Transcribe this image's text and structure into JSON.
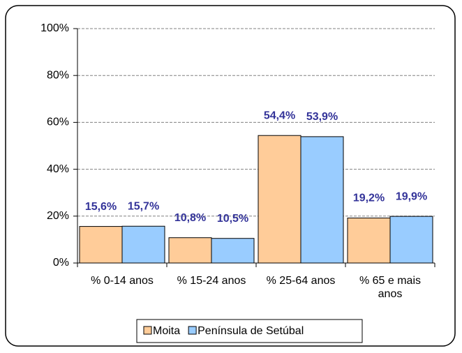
{
  "chart_data": {
    "type": "bar",
    "categories": [
      "% 0-14 anos",
      "% 15-24 anos",
      "% 25-64 anos",
      "% 65 e mais anos"
    ],
    "series": [
      {
        "name": "Moita",
        "color": "#FFCC99",
        "values": [
          15.6,
          10.8,
          54.4,
          19.2
        ],
        "value_labels": [
          "15,6%",
          "10,8%",
          "54,4%",
          "19,2%"
        ]
      },
      {
        "name": "Península de Setúbal",
        "color": "#99CCFF",
        "values": [
          15.7,
          10.5,
          53.9,
          19.9
        ],
        "value_labels": [
          "15,7%",
          "10,5%",
          "53,9%",
          "19,9%"
        ]
      }
    ],
    "ylim": [
      0,
      100
    ],
    "yticks": [
      {
        "value": 0,
        "label": "0%"
      },
      {
        "value": 20,
        "label": "20%"
      },
      {
        "value": 40,
        "label": "40%"
      },
      {
        "value": 60,
        "label": "60%"
      },
      {
        "value": 80,
        "label": "80%"
      },
      {
        "value": 100,
        "label": "100%"
      }
    ],
    "grid": true,
    "legend": "bottom"
  }
}
